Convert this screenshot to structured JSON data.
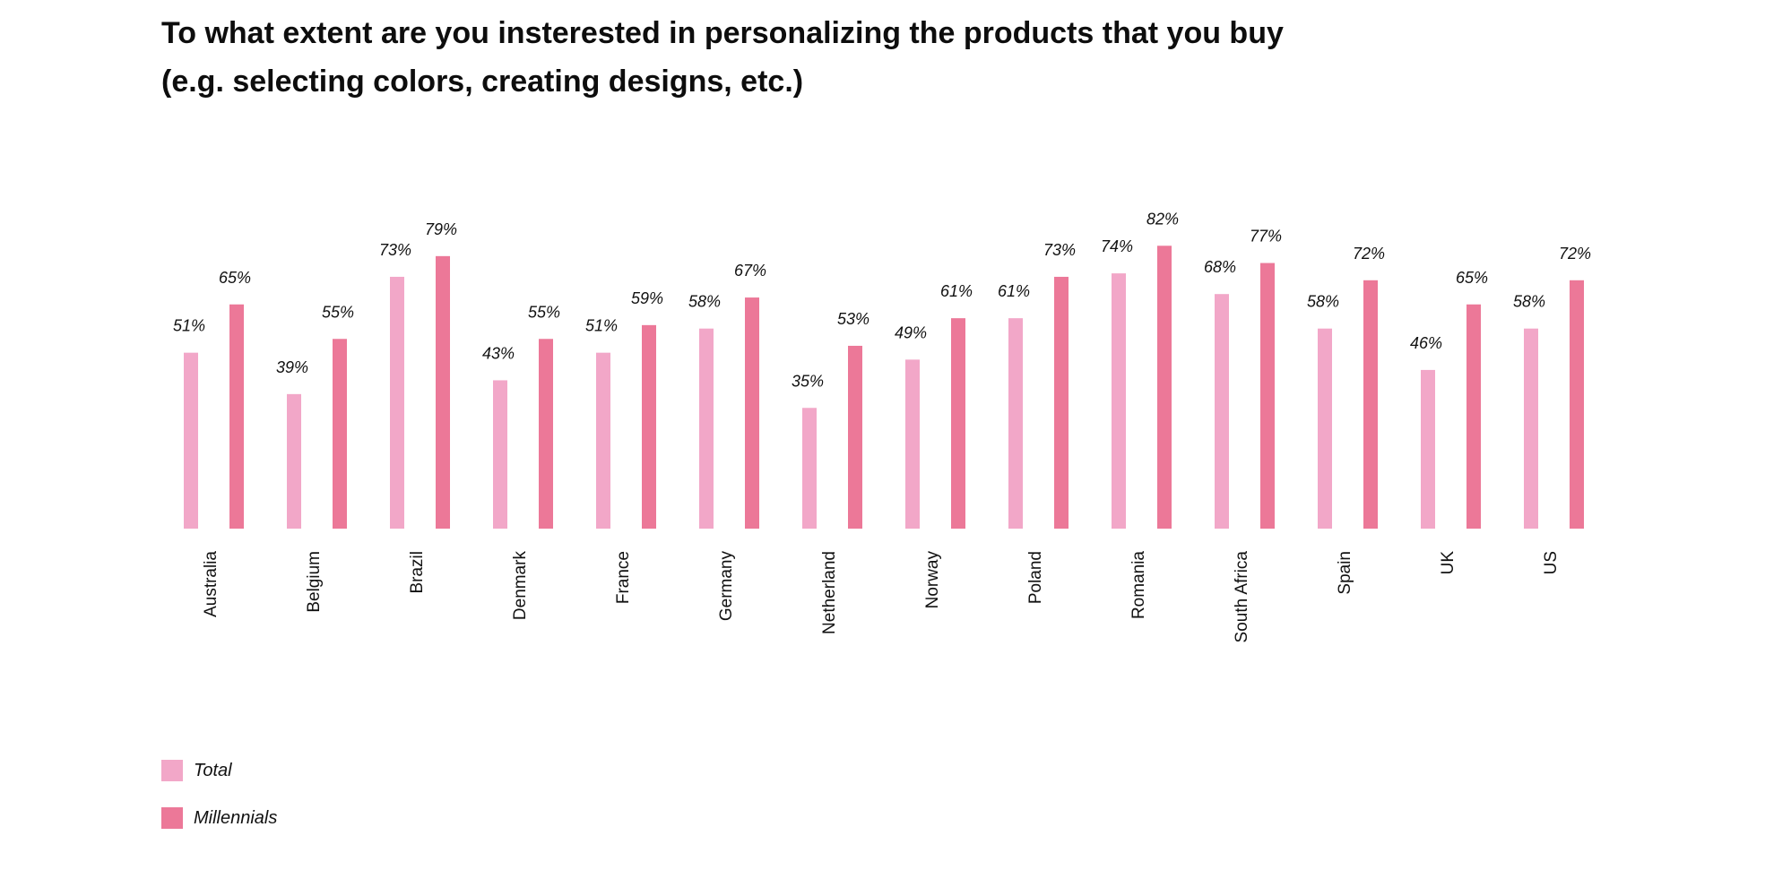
{
  "chart_data": {
    "type": "bar",
    "title_line1": "To what extent are you insterested in personalizing the products that you buy",
    "title_line2": "(e.g. selecting colors, creating designs, etc.)",
    "categories": [
      "Australia",
      "Belgium",
      "Brazil",
      "Denmark",
      "France",
      "Germany",
      "Netherland",
      "Norway",
      "Poland",
      "Romania",
      "South Africa",
      "Spain",
      "UK",
      "US"
    ],
    "series": [
      {
        "name": "Total",
        "color": "#f2a7c8",
        "values": [
          51,
          39,
          73,
          43,
          51,
          58,
          35,
          49,
          61,
          74,
          68,
          58,
          46,
          58
        ]
      },
      {
        "name": "Millennials",
        "color": "#ec7898",
        "values": [
          65,
          55,
          79,
          55,
          59,
          67,
          53,
          61,
          73,
          82,
          77,
          72,
          65,
          72
        ]
      }
    ],
    "value_suffix": "%",
    "ylim": [
      0,
      100
    ],
    "grid": false,
    "legend_position": "bottom-left"
  }
}
